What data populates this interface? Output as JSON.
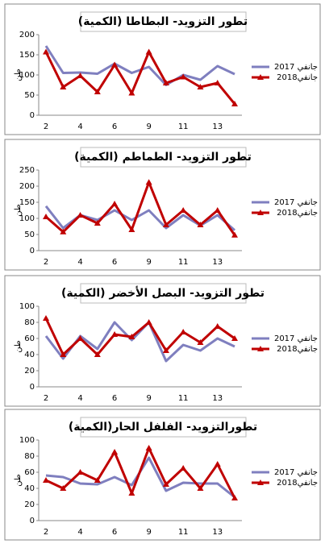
{
  "chart_data": [
    {
      "type": "line",
      "title": "تطور التزويد- البطاطا (الكمية)",
      "ylabel": "طن",
      "categories": [
        "2",
        null,
        "4",
        null,
        "6",
        null,
        "9",
        null,
        "11",
        null,
        "13",
        null
      ],
      "series": [
        {
          "name": "جانفي 2017",
          "color": "#7f7fbf",
          "values": [
            172,
            105,
            106,
            103,
            128,
            105,
            120,
            75,
            100,
            88,
            122,
            102
          ]
        },
        {
          "name": "جانفي2018",
          "color": "#c00000",
          "marker": "triangle",
          "values": [
            157,
            70,
            98,
            58,
            125,
            55,
            157,
            80,
            95,
            70,
            80,
            28
          ]
        }
      ],
      "ylim": [
        0,
        200
      ],
      "yticks": [
        0,
        50,
        100,
        150,
        200
      ],
      "legend": "right"
    },
    {
      "type": "line",
      "title": "تطور التزويد- الطماطم (الكمية)",
      "ylabel": "طن",
      "categories": [
        "2",
        null,
        "4",
        null,
        "6",
        null,
        "9",
        null,
        "11",
        null,
        "13",
        null
      ],
      "series": [
        {
          "name": "جانفي 2017",
          "color": "#7f7fbf",
          "values": [
            138,
            70,
            110,
            95,
            125,
            95,
            125,
            70,
            110,
            78,
            110,
            63
          ]
        },
        {
          "name": "جانفي2018",
          "color": "#c00000",
          "marker": "triangle",
          "values": [
            105,
            58,
            110,
            85,
            145,
            65,
            212,
            80,
            125,
            80,
            125,
            48
          ]
        }
      ],
      "ylim": [
        0,
        250
      ],
      "yticks": [
        0,
        50,
        100,
        150,
        200,
        250
      ],
      "legend": "right"
    },
    {
      "type": "line",
      "title": "تطور التزويد- البصل الأخضر (الكمية)",
      "ylabel": "طن",
      "categories": [
        "2",
        null,
        "4",
        null,
        "6",
        null,
        "9",
        null,
        "11",
        null,
        "13",
        null
      ],
      "series": [
        {
          "name": "جانفي 2017",
          "color": "#7f7fbf",
          "values": [
            63,
            35,
            63,
            47,
            80,
            58,
            80,
            32,
            52,
            45,
            60,
            50
          ]
        },
        {
          "name": "جانفي2018",
          "color": "#c00000",
          "marker": "triangle",
          "values": [
            85,
            40,
            60,
            40,
            65,
            62,
            80,
            45,
            68,
            55,
            75,
            60
          ]
        }
      ],
      "ylim": [
        0,
        100
      ],
      "yticks": [
        0,
        20,
        40,
        60,
        80,
        100
      ],
      "legend": "right"
    },
    {
      "type": "line",
      "title": "تطورالتزويد- الفلفل الحار(الكمية)",
      "ylabel": "طن",
      "categories": [
        "2",
        null,
        "4",
        null,
        "6",
        null,
        "9",
        null,
        "11",
        null,
        "13",
        null
      ],
      "series": [
        {
          "name": "جانفي 2017",
          "color": "#7f7fbf",
          "values": [
            56,
            54,
            46,
            45,
            54,
            44,
            78,
            37,
            47,
            46,
            46,
            29
          ]
        },
        {
          "name": "جانفي2018",
          "color": "#c00000",
          "marker": "triangle",
          "values": [
            50,
            40,
            60,
            50,
            85,
            34,
            90,
            45,
            65,
            40,
            70,
            28
          ]
        }
      ],
      "ylim": [
        0,
        100
      ],
      "yticks": [
        0,
        20,
        40,
        60,
        80,
        100
      ],
      "legend": "right"
    }
  ]
}
